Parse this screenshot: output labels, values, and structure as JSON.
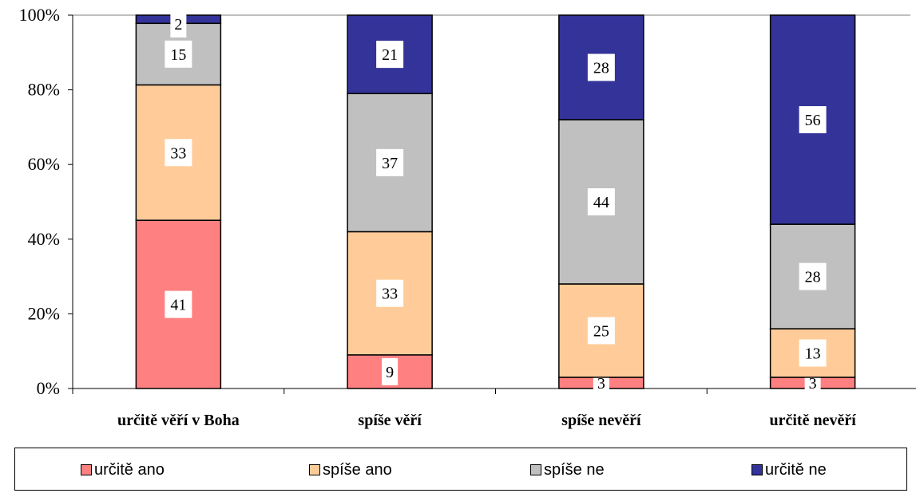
{
  "chart_data": {
    "type": "bar",
    "stacked": true,
    "normalized": true,
    "categories": [
      "určitě věří v Boha",
      "spíše věří",
      "spíše nevěří",
      "určitě nevěří"
    ],
    "series": [
      {
        "name": "určitě ano",
        "values": [
          41,
          9,
          3,
          3
        ],
        "color": "#ff8080"
      },
      {
        "name": "spíše ano",
        "values": [
          33,
          33,
          25,
          13
        ],
        "color": "#ffcc99"
      },
      {
        "name": "spíše ne",
        "values": [
          15,
          37,
          44,
          28
        ],
        "color": "#c0c0c0"
      },
      {
        "name": "určitě ne",
        "values": [
          2,
          21,
          28,
          56
        ],
        "color": "#333399"
      }
    ],
    "y_ticks": [
      "0%",
      "20%",
      "40%",
      "60%",
      "80%",
      "100%"
    ],
    "ylim": [
      0,
      100
    ],
    "title": "",
    "xlabel": "",
    "ylabel": "",
    "grid": false,
    "legend_position": "bottom"
  }
}
